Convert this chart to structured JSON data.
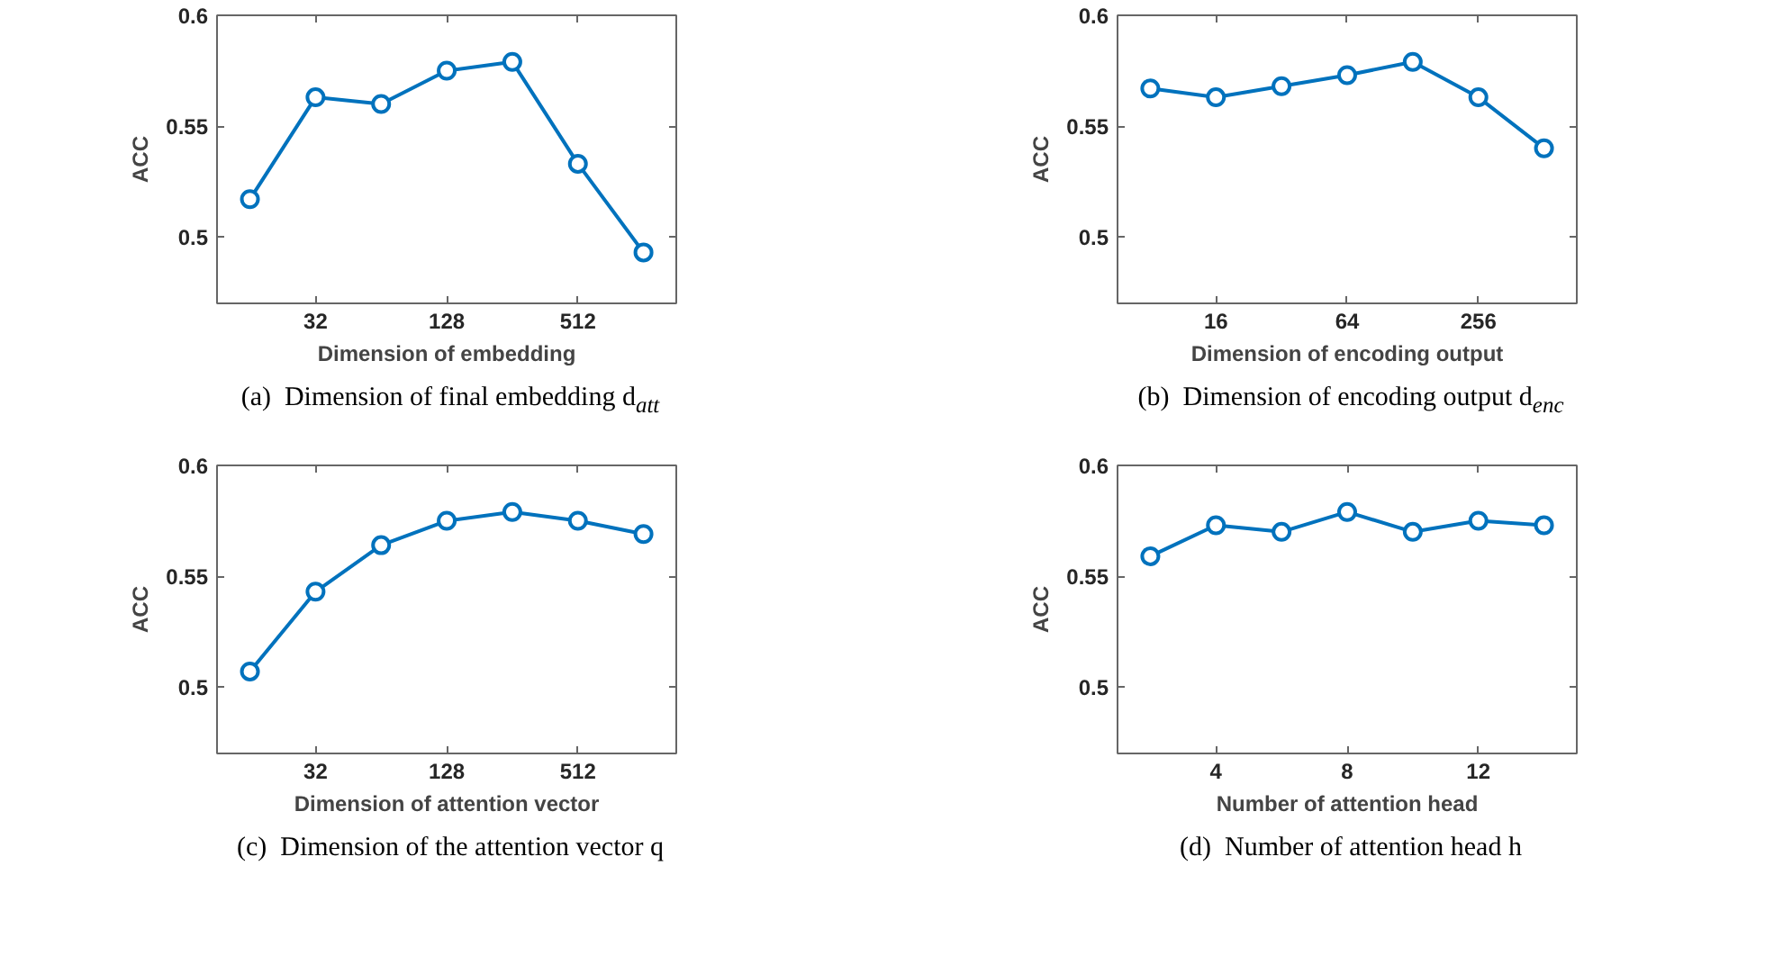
{
  "chart_data": [
    {
      "type": "line",
      "xlabel": "Dimension of embedding",
      "ylabel": "ACC",
      "log": "x",
      "x": [
        16,
        32,
        64,
        128,
        256,
        512,
        1024
      ],
      "xlim": [
        11.3,
        1448
      ],
      "xticks": [
        32,
        128,
        512
      ],
      "ylim": [
        0.47,
        0.6
      ],
      "yticks": [
        0.5,
        0.55,
        0.6
      ],
      "marker": "circle",
      "line_style": "solid",
      "grid": false,
      "series": [
        {
          "color": "#0072bd",
          "values": [
            0.517,
            0.563,
            0.56,
            0.575,
            0.579,
            0.533,
            0.493
          ]
        }
      ],
      "annotations": [
        "(a)  Dimension of final embedding d$_{att}$"
      ]
    },
    {
      "type": "line",
      "xlabel": "Dimension of encoding output",
      "ylabel": "ACC",
      "log": "x",
      "x": [
        8,
        16,
        32,
        64,
        128,
        256,
        512
      ],
      "xlim": [
        5.66,
        724
      ],
      "xticks": [
        16,
        64,
        256
      ],
      "ylim": [
        0.47,
        0.6
      ],
      "yticks": [
        0.5,
        0.55,
        0.6
      ],
      "marker": "circle",
      "line_style": "solid",
      "grid": false,
      "series": [
        {
          "color": "#0072bd",
          "values": [
            0.567,
            0.563,
            0.568,
            0.573,
            0.579,
            0.563,
            0.54
          ]
        }
      ],
      "annotations": [
        "(b)  Dimension of encoding output d$_{enc}$"
      ]
    },
    {
      "type": "line",
      "xlabel": "Dimension of attention vector",
      "ylabel": "ACC",
      "log": "x",
      "x": [
        16,
        32,
        64,
        128,
        256,
        512,
        1024
      ],
      "xlim": [
        11.3,
        1448
      ],
      "xticks": [
        32,
        128,
        512
      ],
      "ylim": [
        0.47,
        0.6
      ],
      "yticks": [
        0.5,
        0.55,
        0.6
      ],
      "marker": "circle",
      "line_style": "solid",
      "grid": false,
      "series": [
        {
          "color": "#0072bd",
          "values": [
            0.507,
            0.543,
            0.564,
            0.575,
            0.579,
            0.575,
            0.569
          ]
        }
      ],
      "annotations": [
        "(c)  Dimension of the attention vector q"
      ]
    },
    {
      "type": "line",
      "xlabel": "Number of attention head",
      "ylabel": "ACC",
      "x": [
        2,
        4,
        6,
        8,
        10,
        12,
        14
      ],
      "xlim": [
        1,
        15
      ],
      "xticks": [
        4,
        8,
        12
      ],
      "ylim": [
        0.47,
        0.6
      ],
      "yticks": [
        0.5,
        0.55,
        0.6
      ],
      "marker": "circle",
      "line_style": "solid",
      "grid": false,
      "series": [
        {
          "color": "#0072bd",
          "values": [
            0.559,
            0.573,
            0.57,
            0.579,
            0.57,
            0.575,
            0.573
          ]
        }
      ],
      "annotations": [
        "(d)  Number of attention head h"
      ]
    }
  ]
}
